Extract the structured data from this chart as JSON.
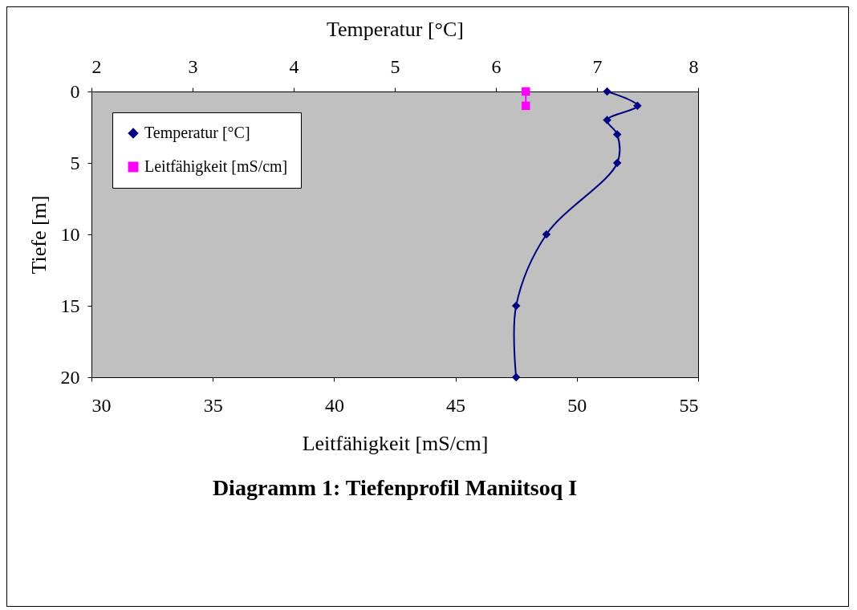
{
  "chart_data": {
    "type": "line",
    "title": "Diagramm 1: Tiefenprofil Maniitsoq I",
    "xlabel": "Leitfähigkeit [mS/cm]",
    "x2label": "Temperatur [°C]",
    "ylabel": "Tiefe [m]",
    "xlim": [
      30,
      55
    ],
    "xticks": [
      30,
      35,
      40,
      45,
      50,
      55
    ],
    "x2lim": [
      2,
      8
    ],
    "x2ticks": [
      2,
      3,
      4,
      5,
      6,
      7,
      8
    ],
    "ylim": [
      20,
      0
    ],
    "yticks": [
      0,
      5,
      10,
      15,
      20
    ],
    "legend": "top left",
    "grid": false,
    "line_style": "solid",
    "series": [
      {
        "name": "Temperatur [°C]",
        "color": "#000080",
        "axis": "x2",
        "marker": "diamond",
        "x": [
          7.1,
          7.4,
          7.1,
          7.2,
          7.2,
          6.5,
          6.2,
          6.2
        ],
        "values": [
          0,
          1,
          2,
          3,
          5,
          10,
          15,
          20
        ]
      },
      {
        "name": "Leitfähigkeit [mS/cm]",
        "color": "#ff00ff",
        "marker": "square",
        "x": [
          47.9,
          47.9
        ],
        "values": [
          0,
          1
        ]
      }
    ]
  }
}
